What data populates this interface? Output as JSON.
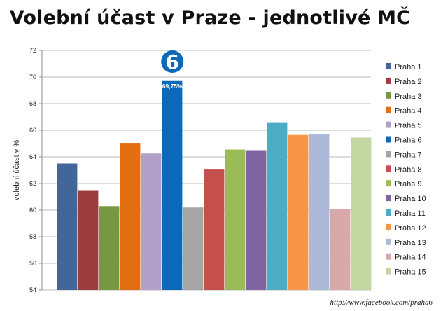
{
  "chart_data": {
    "type": "bar",
    "title": "Volební účast v Praze - jednotlivé MČ",
    "ylabel": "volební účast v %",
    "xlabel": "",
    "ylim": [
      54,
      72
    ],
    "yticks": [
      54,
      56,
      58,
      60,
      62,
      64,
      66,
      68,
      70,
      72
    ],
    "grid": true,
    "legend_position": "right",
    "series": [
      {
        "name": "Praha 1",
        "value": 63.5,
        "color": "#426697"
      },
      {
        "name": "Praha 2",
        "value": 61.5,
        "color": "#9c3c3e"
      },
      {
        "name": "Praha 3",
        "value": 60.3,
        "color": "#789743"
      },
      {
        "name": "Praha 4",
        "value": 65.05,
        "color": "#e36e12"
      },
      {
        "name": "Praha 5",
        "value": 64.25,
        "color": "#b1a0c7"
      },
      {
        "name": "Praha 6",
        "value": 69.75,
        "color": "#0c68b8"
      },
      {
        "name": "Praha 7",
        "value": 60.2,
        "color": "#a5a5a5"
      },
      {
        "name": "Praha 8",
        "value": 63.1,
        "color": "#c44f4c"
      },
      {
        "name": "Praha 9",
        "value": 64.55,
        "color": "#9bbb59"
      },
      {
        "name": "Praha 10",
        "value": 64.5,
        "color": "#8064a2"
      },
      {
        "name": "Praha 11",
        "value": 66.6,
        "color": "#4bacc6"
      },
      {
        "name": "Praha 12",
        "value": 65.65,
        "color": "#f79646"
      },
      {
        "name": "Praha 13",
        "value": 65.7,
        "color": "#adb9d9"
      },
      {
        "name": "Praha 14",
        "value": 60.1,
        "color": "#d9a9a9"
      },
      {
        "name": "Praha 15",
        "value": 65.45,
        "color": "#c4d7a3"
      }
    ],
    "highlight": {
      "index": 5,
      "label": "69,75%",
      "badge_text": "6"
    }
  },
  "footer": {
    "url": "http://www.facebook.com/praha6"
  }
}
